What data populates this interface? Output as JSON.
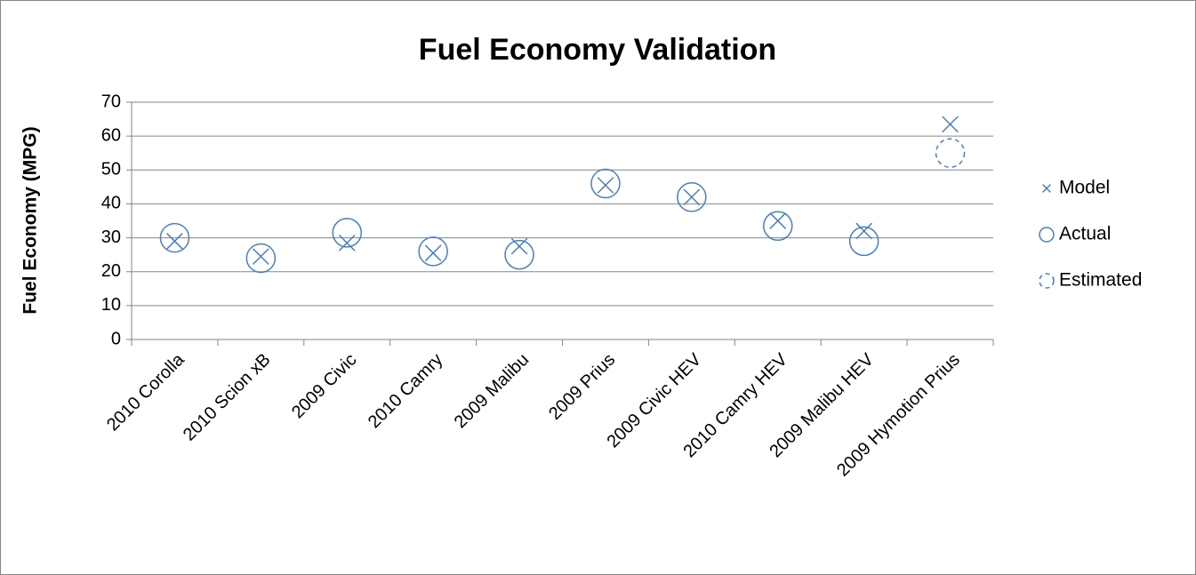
{
  "chart_data": {
    "type": "line",
    "title": "Fuel Economy Validation",
    "y_label": "Fuel Economy (MPG)",
    "categories": [
      "2010 Corolla",
      "2010 Scion xB",
      "2009 Civic",
      "2010 Camry",
      "2009 Malibu",
      "2009 Prius",
      "2009 Civic HEV",
      "2010 Camry HEV",
      "2009 Malibu HEV",
      "2009 Hymotion Prius"
    ],
    "series": [
      {
        "name": "Model",
        "color": "#4a7ebb",
        "marker": "x",
        "values": [
          29,
          24.5,
          28.5,
          25.5,
          27.5,
          45.5,
          42,
          35,
          32,
          63.5
        ]
      },
      {
        "name": "Actual",
        "color": "#4a7ebb",
        "marker": "circle",
        "values": [
          30,
          24,
          31.5,
          26,
          25,
          46,
          42,
          33.5,
          29,
          null
        ]
      },
      {
        "name": "Estimated",
        "color": "#4a7ebb",
        "marker": "dashed-circle",
        "values": [
          null,
          null,
          null,
          null,
          null,
          null,
          null,
          null,
          null,
          55
        ]
      }
    ],
    "ylim": [
      0,
      70
    ],
    "yticks": [
      0,
      10,
      20,
      30,
      40,
      50,
      60,
      70
    ],
    "grid": true,
    "legend": "right"
  }
}
